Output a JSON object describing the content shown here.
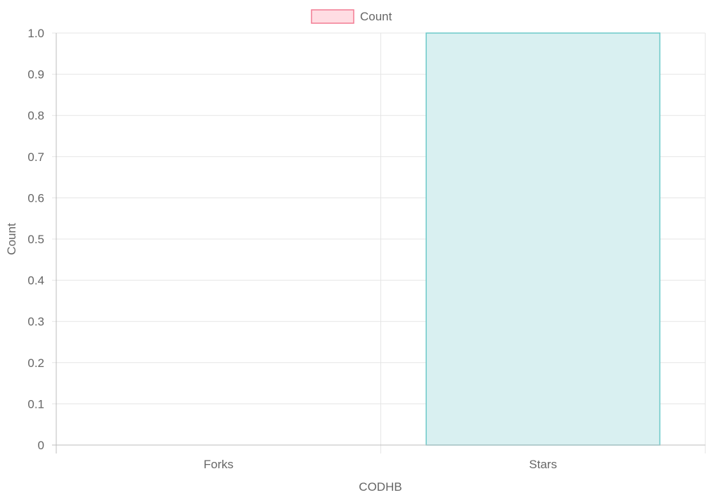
{
  "chart_data": {
    "type": "bar",
    "categories": [
      "Forks",
      "Stars"
    ],
    "series": [
      {
        "name": "Count",
        "values": [
          0,
          1
        ],
        "color_fill": "#d9f0f1",
        "color_stroke": "#6cc9c9"
      }
    ],
    "legend": {
      "label": "Count",
      "position": "top",
      "swatch_fill": "#ffdde3",
      "swatch_stroke": "#f27b93"
    },
    "xlabel": "CODHB",
    "ylabel": "Count",
    "ylim": [
      0,
      1
    ],
    "yticks": [
      "0",
      "0.1",
      "0.2",
      "0.3",
      "0.4",
      "0.5",
      "0.6",
      "0.7",
      "0.8",
      "0.9",
      "1.0"
    ],
    "ytick_values": [
      0,
      0.1,
      0.2,
      0.3,
      0.4,
      0.5,
      0.6,
      0.7,
      0.8,
      0.9,
      1.0
    ],
    "grid": true,
    "colors": {
      "grid": "#e5e5e5",
      "axis": "#bdbdbd",
      "text": "#666666"
    }
  }
}
